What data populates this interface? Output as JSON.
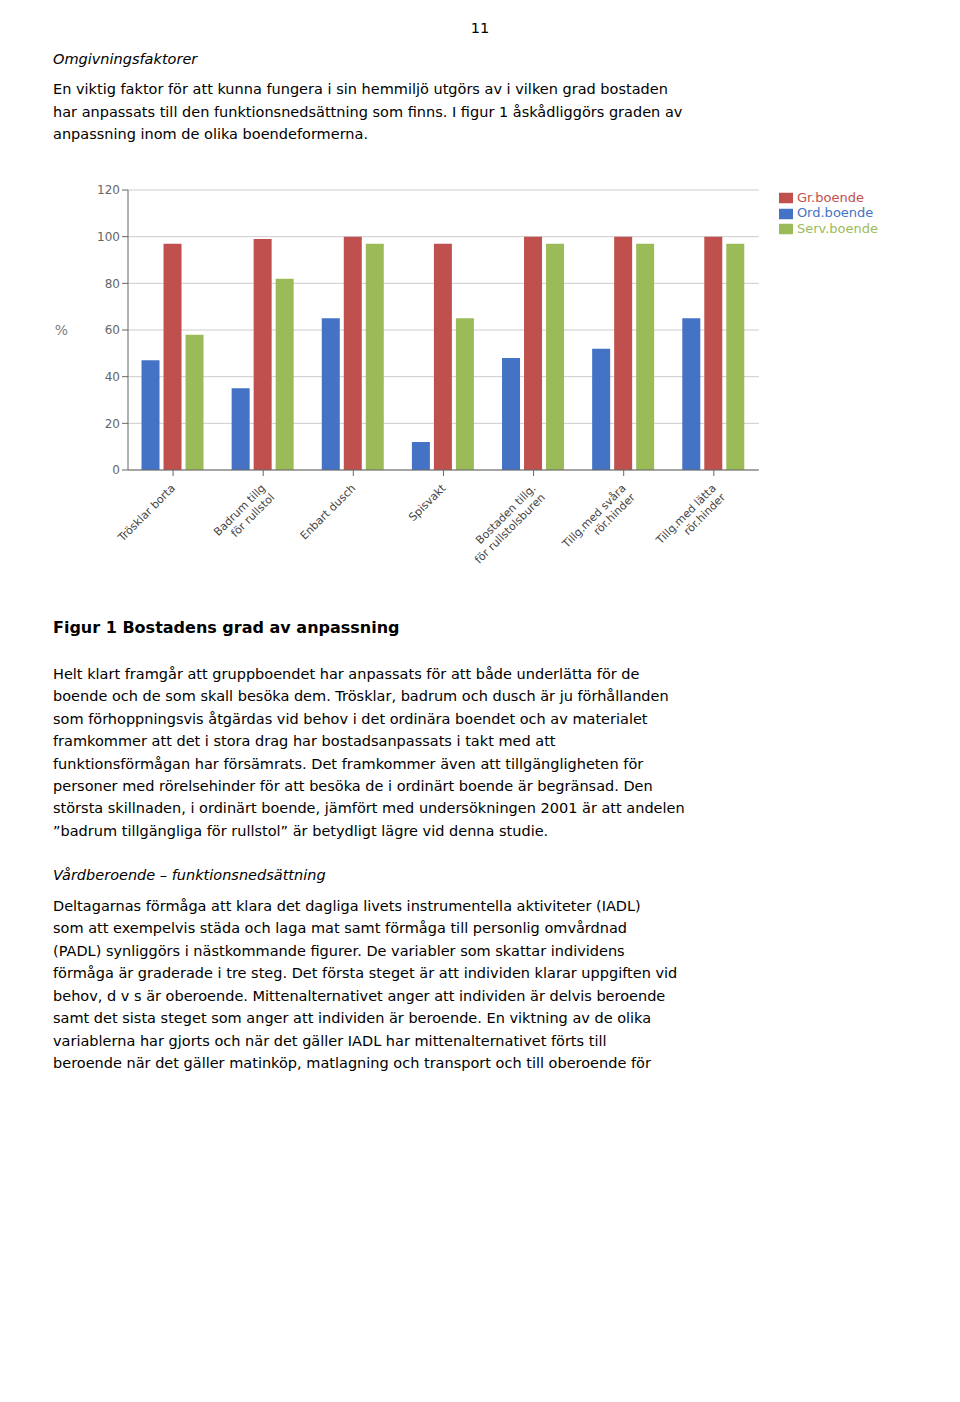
{
  "chart_data": {
    "type": "bar",
    "title": "Figur 1 Bostadens grad av anpassning",
    "categories": [
      "Trösklar borta",
      "Badrum tillg\nför rullstol",
      "Enbart dusch",
      "Spisvakt",
      "Bostaden tillg.\nför rullstolsburen",
      "Tillg.med svåra\nrör.hinder",
      "Tillg.med lätta\nrör.hinder"
    ],
    "series": [
      {
        "name": "Ord.boende",
        "color": "#4472C4",
        "values": [
          47,
          35,
          65,
          12,
          48,
          52,
          65
        ]
      },
      {
        "name": "Gr.boende",
        "color": "#C0504D",
        "values": [
          97,
          99,
          100,
          97,
          100,
          100,
          100
        ]
      },
      {
        "name": "Serv.boende",
        "color": "#9BBB59",
        "values": [
          58,
          82,
          97,
          65,
          97,
          97,
          97
        ]
      }
    ],
    "y_label": "%",
    "ylim": [
      0,
      120
    ],
    "yticks": [
      0,
      20,
      40,
      60,
      80,
      100,
      120
    ],
    "grid": true,
    "legend": "upper right",
    "annotations": [
      "11",
      "Omgivningsfaktorer",
      "En viktig faktor för att kunna fungera i sin hemmiljö utgörs av i vilken grad bostaden\nhar anpassats till den funktionsnedsättning som finns. I figur 1 åskådliggörs graden av\nanpassning inom de olika boendeformerna.",
      "Helt klart framgår att gruppboendet har anpassats för att både underlätta för de\nboende och de som skall besöka dem. Trösklar, badrum och dusch är ju förhållanden\nsom förhoppningsvis åtgärdas vid behov i det ordinära boendet och av materialet\nframkommer att det i stora drag har bostadsanpassats i takt med att\nfunktionsförmågan har försämrats. Det framkommer även att tillgängligheten för\npersoner med rörelsehinder för att besöka de i ordinärt boende är begränsad. Den\nstörsta skillnaden, i ordinärt boende, jämfört med undersökningen 2001 är att andelen\n”badrum tillgängliga för rullstol” är betydligt lägre vid denna studie.",
      "Vårdberoende – funktionsnedsättning",
      "Deltagarnas förmåga att klara det dagliga livets instrumentella aktiviteter (IADL)\nsom att exempelvis städa och laga mat samt förmåga till personlig omvårdnad\n(PADL) synliggörs i nästkommande figurer. De variabler som skattar individens\nförmåga är graderade i tre steg. Det första steget är att individen klarar uppgiften vid\nbehov, d v s är oberoende. Mittenalternativet anger att individen är delvis beroende\nsamt det sista steget som anger att individen är beroende. En viktning av de olika\nvariablerna har gjorts och när det gäller IADL har mittenalternativet förts till\nberoende när det gäller matinköp, matlagning och transport och till oberoende för"
    ]
  }
}
